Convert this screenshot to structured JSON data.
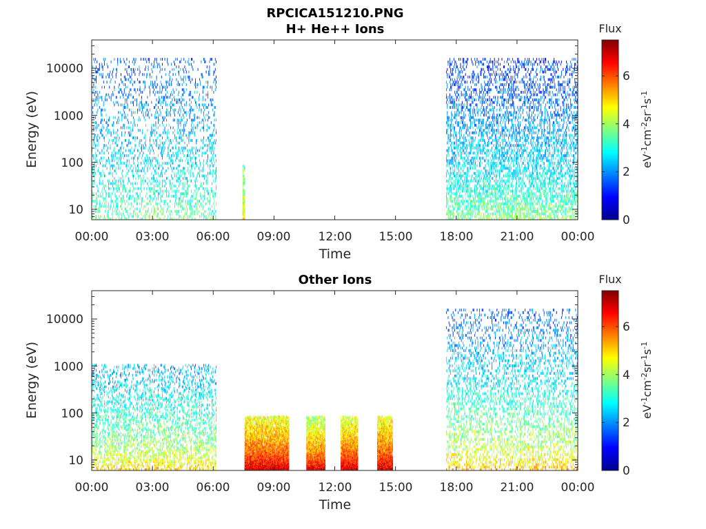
{
  "figure": {
    "title_line1": "RPCICA151210.PNG",
    "colormap": "jet",
    "axis_color": "#262626"
  },
  "chart_data": [
    {
      "type": "heatmap",
      "title": "H+ He++ Ions",
      "xlabel": "Time",
      "ylabel": "Energy (eV)",
      "x_ticks": [
        "00:00",
        "03:00",
        "06:00",
        "09:00",
        "12:00",
        "15:00",
        "18:00",
        "21:00",
        "00:00"
      ],
      "x_range_hours": [
        0,
        24
      ],
      "y_scale": "log",
      "y_range_eV": [
        6,
        40000
      ],
      "y_ticks": [
        10,
        100,
        1000,
        10000
      ],
      "y_tick_labels": [
        "10",
        "100",
        "1000",
        "10000"
      ],
      "colorbar": {
        "label": "Flux",
        "unit_label": "eV-1cm-2sr-1s-1",
        "range": [
          0,
          7.5
        ],
        "ticks": [
          0,
          2,
          4,
          6
        ],
        "tick_labels": [
          "0",
          "2",
          "4",
          "6"
        ]
      },
      "data_blocks": [
        {
          "t_start": 0.0,
          "t_end": 6.15,
          "e_min": 6,
          "e_max": 15000,
          "flux_low_energy": 3.8,
          "flux_high_energy": 1.6,
          "density": 0.35
        },
        {
          "t_start": 7.45,
          "t_end": 7.55,
          "e_min": 6,
          "e_max": 80,
          "flux_low_energy": 5.0,
          "flux_high_energy": 3.5,
          "density": 0.7
        },
        {
          "t_start": 17.5,
          "t_end": 24.0,
          "e_min": 6,
          "e_max": 15000,
          "flux_low_energy": 4.0,
          "flux_high_energy": 1.3,
          "density": 0.6
        }
      ]
    },
    {
      "type": "heatmap",
      "title": "Other Ions",
      "xlabel": "Time",
      "ylabel": "Energy (eV)",
      "x_ticks": [
        "00:00",
        "03:00",
        "06:00",
        "09:00",
        "12:00",
        "15:00",
        "18:00",
        "21:00",
        "00:00"
      ],
      "x_range_hours": [
        0,
        24
      ],
      "y_scale": "log",
      "y_range_eV": [
        6,
        40000
      ],
      "y_ticks": [
        10,
        100,
        1000,
        10000
      ],
      "y_tick_labels": [
        "10",
        "100",
        "1000",
        "10000"
      ],
      "colorbar": {
        "label": "Flux",
        "unit_label": "eV-1cm-2sr-1s-1",
        "range": [
          0,
          7.5
        ],
        "ticks": [
          0,
          2,
          4,
          6
        ],
        "tick_labels": [
          "0",
          "2",
          "4",
          "6"
        ]
      },
      "data_blocks": [
        {
          "t_start": 0.0,
          "t_end": 6.15,
          "e_min": 6,
          "e_max": 1000,
          "flux_low_energy": 5.2,
          "flux_high_energy": 2.2,
          "density": 0.4
        },
        {
          "t_start": 7.55,
          "t_end": 9.75,
          "e_min": 6,
          "e_max": 80,
          "flux_low_energy": 7.2,
          "flux_high_energy": 4.6,
          "density": 0.95
        },
        {
          "t_start": 10.6,
          "t_end": 11.5,
          "e_min": 6,
          "e_max": 80,
          "flux_low_energy": 7.3,
          "flux_high_energy": 4.0,
          "density": 0.95
        },
        {
          "t_start": 12.3,
          "t_end": 13.15,
          "e_min": 6,
          "e_max": 80,
          "flux_low_energy": 7.3,
          "flux_high_energy": 4.4,
          "density": 0.95
        },
        {
          "t_start": 14.1,
          "t_end": 14.85,
          "e_min": 6,
          "e_max": 80,
          "flux_low_energy": 7.2,
          "flux_high_energy": 4.6,
          "density": 0.95
        },
        {
          "t_start": 17.5,
          "t_end": 24.0,
          "e_min": 6,
          "e_max": 15000,
          "flux_low_energy": 5.4,
          "flux_high_energy": 1.6,
          "density": 0.45
        }
      ]
    }
  ]
}
